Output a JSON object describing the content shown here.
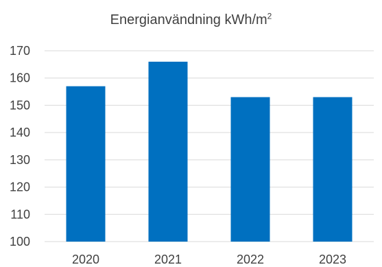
{
  "chart_data": {
    "type": "bar",
    "title": "Energianvändning kWh/m",
    "title_superscript": "2",
    "categories": [
      "2020",
      "2021",
      "2022",
      "2023"
    ],
    "values": [
      157,
      166,
      153,
      153
    ],
    "ylim": [
      100,
      170
    ],
    "yticks": [
      100,
      110,
      120,
      130,
      140,
      150,
      160,
      170
    ],
    "grid": true,
    "legend": "none",
    "bar_color": "#0070c0",
    "grid_color": "#d9d9d9"
  }
}
